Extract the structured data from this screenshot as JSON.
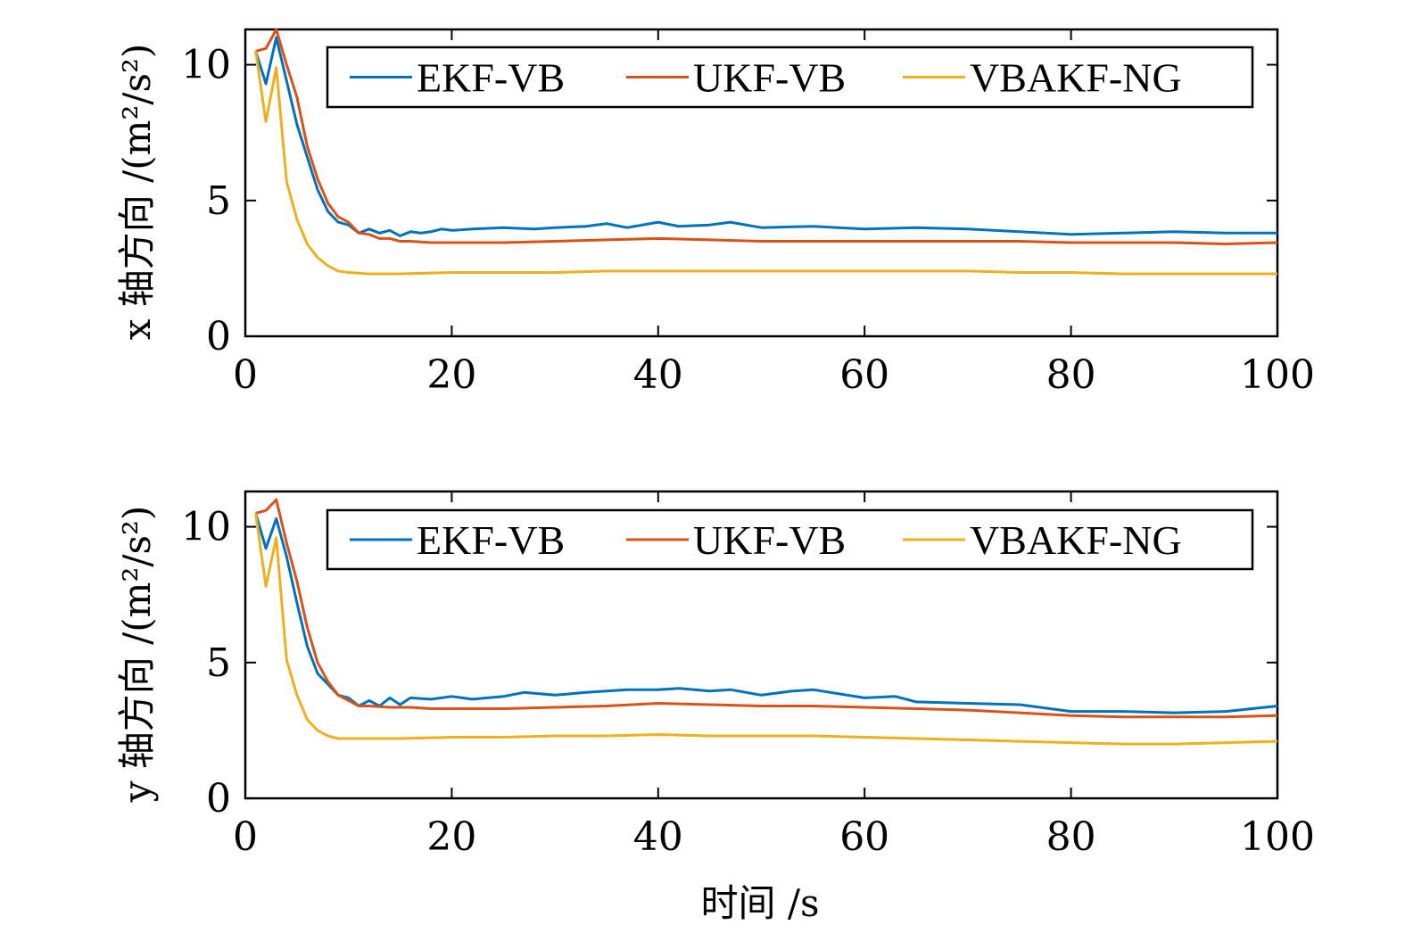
{
  "chart_data": [
    {
      "type": "line",
      "ylabel": "x 轴方向 /(m²/s²)",
      "xlim": [
        0,
        100
      ],
      "ylim": [
        0,
        11.3
      ],
      "xticks": [
        0,
        20,
        40,
        60,
        80,
        100
      ],
      "yticks": [
        0,
        5,
        10
      ],
      "grid": false,
      "legend": {
        "placement": "top",
        "orientation": "horizontal"
      },
      "series": [
        {
          "name": "EKF-VB",
          "color": "#0072BD",
          "x": [
            1,
            2,
            3,
            4,
            5,
            6,
            7,
            8,
            9,
            10,
            11,
            12,
            13,
            14,
            15,
            16,
            17,
            18,
            19,
            20,
            22,
            25,
            28,
            30,
            33,
            35,
            37,
            40,
            42,
            45,
            47,
            50,
            55,
            60,
            65,
            70,
            75,
            80,
            85,
            90,
            95,
            100
          ],
          "y": [
            10.5,
            9.3,
            11.0,
            9.4,
            7.8,
            6.6,
            5.4,
            4.6,
            4.2,
            4.1,
            3.8,
            3.95,
            3.8,
            3.9,
            3.7,
            3.85,
            3.8,
            3.85,
            3.95,
            3.9,
            3.95,
            4.0,
            3.95,
            4.0,
            4.05,
            4.15,
            4.0,
            4.2,
            4.05,
            4.1,
            4.2,
            4.0,
            4.05,
            3.95,
            4.0,
            3.95,
            3.85,
            3.75,
            3.8,
            3.85,
            3.8,
            3.8
          ]
        },
        {
          "name": "UKF-VB",
          "color": "#D95319",
          "x": [
            1,
            2,
            3,
            4,
            5,
            6,
            7,
            8,
            9,
            10,
            11,
            12,
            13,
            14,
            15,
            16,
            18,
            20,
            25,
            30,
            35,
            40,
            45,
            50,
            55,
            60,
            65,
            70,
            75,
            80,
            85,
            90,
            95,
            100
          ],
          "y": [
            10.5,
            10.6,
            11.3,
            10.0,
            8.8,
            7.0,
            5.8,
            4.9,
            4.4,
            4.2,
            3.8,
            3.75,
            3.6,
            3.6,
            3.5,
            3.5,
            3.45,
            3.45,
            3.45,
            3.5,
            3.55,
            3.6,
            3.55,
            3.5,
            3.5,
            3.5,
            3.5,
            3.5,
            3.5,
            3.45,
            3.45,
            3.45,
            3.4,
            3.45
          ]
        },
        {
          "name": "VBAKF-NG",
          "color": "#EDB120",
          "x": [
            1,
            2,
            3,
            4,
            5,
            6,
            7,
            8,
            9,
            10,
            12,
            15,
            20,
            25,
            30,
            35,
            40,
            45,
            50,
            55,
            60,
            65,
            70,
            75,
            80,
            85,
            90,
            95,
            100
          ],
          "y": [
            10.5,
            7.9,
            9.9,
            5.7,
            4.3,
            3.4,
            2.9,
            2.6,
            2.4,
            2.35,
            2.3,
            2.3,
            2.35,
            2.35,
            2.35,
            2.4,
            2.4,
            2.4,
            2.4,
            2.4,
            2.4,
            2.4,
            2.4,
            2.35,
            2.35,
            2.3,
            2.3,
            2.3,
            2.3
          ]
        }
      ]
    },
    {
      "type": "line",
      "ylabel": "y 轴方向 /(m²/s²)",
      "xlabel": "时间 /s",
      "xlim": [
        0,
        100
      ],
      "ylim": [
        0,
        11.3
      ],
      "xticks": [
        0,
        20,
        40,
        60,
        80,
        100
      ],
      "yticks": [
        0,
        5,
        10
      ],
      "grid": false,
      "legend": {
        "placement": "top",
        "orientation": "horizontal"
      },
      "series": [
        {
          "name": "EKF-VB",
          "color": "#0072BD",
          "x": [
            1,
            2,
            3,
            4,
            5,
            6,
            7,
            8,
            9,
            10,
            11,
            12,
            13,
            14,
            15,
            16,
            18,
            20,
            22,
            25,
            27,
            30,
            33,
            35,
            37,
            40,
            42,
            45,
            47,
            50,
            53,
            55,
            60,
            63,
            65,
            70,
            75,
            80,
            85,
            90,
            95,
            100
          ],
          "y": [
            10.5,
            9.2,
            10.3,
            8.9,
            7.2,
            5.6,
            4.6,
            4.2,
            3.8,
            3.7,
            3.4,
            3.6,
            3.4,
            3.7,
            3.45,
            3.7,
            3.65,
            3.75,
            3.65,
            3.75,
            3.9,
            3.8,
            3.9,
            3.95,
            4.0,
            4.0,
            4.05,
            3.95,
            4.0,
            3.8,
            3.95,
            4.0,
            3.7,
            3.75,
            3.55,
            3.5,
            3.45,
            3.2,
            3.2,
            3.15,
            3.2,
            3.4
          ]
        },
        {
          "name": "UKF-VB",
          "color": "#D95319",
          "x": [
            1,
            2,
            3,
            4,
            5,
            6,
            7,
            8,
            9,
            10,
            11,
            12,
            14,
            16,
            18,
            20,
            25,
            30,
            35,
            40,
            45,
            50,
            55,
            60,
            65,
            70,
            75,
            80,
            85,
            90,
            95,
            100
          ],
          "y": [
            10.5,
            10.6,
            11.0,
            9.4,
            8.0,
            6.3,
            5.0,
            4.3,
            3.8,
            3.6,
            3.4,
            3.4,
            3.35,
            3.35,
            3.3,
            3.3,
            3.3,
            3.35,
            3.4,
            3.5,
            3.45,
            3.4,
            3.4,
            3.35,
            3.3,
            3.25,
            3.15,
            3.05,
            3.0,
            3.0,
            3.0,
            3.05
          ]
        },
        {
          "name": "VBAKF-NG",
          "color": "#EDB120",
          "x": [
            1,
            2,
            3,
            4,
            5,
            6,
            7,
            8,
            9,
            10,
            12,
            15,
            20,
            25,
            30,
            35,
            40,
            45,
            50,
            55,
            60,
            65,
            70,
            75,
            80,
            85,
            90,
            95,
            100
          ],
          "y": [
            10.5,
            7.8,
            9.6,
            5.1,
            3.8,
            2.9,
            2.5,
            2.3,
            2.2,
            2.2,
            2.2,
            2.2,
            2.25,
            2.25,
            2.3,
            2.3,
            2.35,
            2.3,
            2.3,
            2.3,
            2.25,
            2.2,
            2.15,
            2.1,
            2.05,
            2.0,
            2.0,
            2.05,
            2.1
          ]
        }
      ]
    }
  ]
}
